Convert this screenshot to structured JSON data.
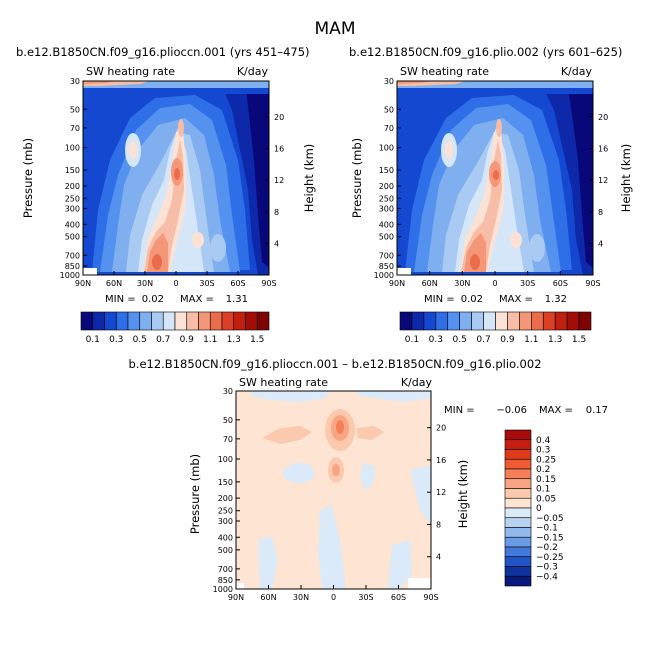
{
  "figure": {
    "season": "MAM"
  },
  "chart_data": [
    {
      "type": "heatmap",
      "title": "b.e12.B1850CN.f09_g16.plioccn.001 (yrs 451–475)",
      "field_label": "SW heating rate",
      "units_label": "K/day",
      "ylabel": "Pressure (mb)",
      "y2label": "Height (km)",
      "x_ticks": [
        "90N",
        "60N",
        "30N",
        "0",
        "30S",
        "60S",
        "90S"
      ],
      "x_values": [
        90,
        60,
        30,
        0,
        -30,
        -60,
        -90
      ],
      "y_ticks": [
        "30",
        "50",
        "70",
        "100",
        "150",
        "200",
        "250",
        "300",
        "400",
        "500",
        "700",
        "850",
        "1000"
      ],
      "y_values": [
        30,
        50,
        70,
        100,
        150,
        200,
        250,
        300,
        400,
        500,
        700,
        850,
        1000
      ],
      "y2_ticks": [
        "20",
        "16",
        "12",
        "8",
        "4"
      ],
      "y2_values": [
        20,
        16,
        12,
        8,
        4
      ],
      "ylim": [
        30,
        1000
      ],
      "min_label": "MIN =",
      "min_value": "0.02",
      "max_label": "MAX =",
      "max_value": "1.31",
      "colorbar": {
        "labels": [
          "0.1",
          "0.3",
          "0.5",
          "0.7",
          "0.9",
          "1.1",
          "1.3",
          "1.5"
        ],
        "levels": [
          0.1,
          0.2,
          0.3,
          0.4,
          0.5,
          0.6,
          0.7,
          0.8,
          0.9,
          1.0,
          1.1,
          1.2,
          1.3,
          1.4,
          1.5
        ],
        "colors": [
          "#08087a",
          "#0d28a8",
          "#1448d0",
          "#2e6fe8",
          "#5591ef",
          "#80afef",
          "#a9caf2",
          "#d5e6f8",
          "#fbe2d4",
          "#f7bda6",
          "#f39778",
          "#ea6d4b",
          "#dc4128",
          "#c2200f",
          "#a30d07",
          "#7e0303"
        ]
      }
    },
    {
      "type": "heatmap",
      "title": "b.e12.B1850CN.f09_g16.plio.002 (yrs 601–625)",
      "field_label": "SW heating rate",
      "units_label": "K/day",
      "ylabel": "Pressure (mb)",
      "y2label": "Height (km)",
      "x_ticks": [
        "90N",
        "60N",
        "30N",
        "0",
        "30S",
        "60S",
        "90S"
      ],
      "x_values": [
        90,
        60,
        30,
        0,
        -30,
        -60,
        -90
      ],
      "y_ticks": [
        "30",
        "50",
        "70",
        "100",
        "150",
        "200",
        "250",
        "300",
        "400",
        "500",
        "700",
        "850",
        "1000"
      ],
      "y_values": [
        30,
        50,
        70,
        100,
        150,
        200,
        250,
        300,
        400,
        500,
        700,
        850,
        1000
      ],
      "y2_ticks": [
        "20",
        "16",
        "12",
        "8",
        "4"
      ],
      "y2_values": [
        20,
        16,
        12,
        8,
        4
      ],
      "ylim": [
        30,
        1000
      ],
      "min_label": "MIN =",
      "min_value": "0.02",
      "max_label": "MAX =",
      "max_value": "1.32",
      "colorbar": {
        "labels": [
          "0.1",
          "0.3",
          "0.5",
          "0.7",
          "0.9",
          "1.1",
          "1.3",
          "1.5"
        ],
        "levels": [
          0.1,
          0.2,
          0.3,
          0.4,
          0.5,
          0.6,
          0.7,
          0.8,
          0.9,
          1.0,
          1.1,
          1.2,
          1.3,
          1.4,
          1.5
        ],
        "colors": [
          "#08087a",
          "#0d28a8",
          "#1448d0",
          "#2e6fe8",
          "#5591ef",
          "#80afef",
          "#a9caf2",
          "#d5e6f8",
          "#fbe2d4",
          "#f7bda6",
          "#f39778",
          "#ea6d4b",
          "#dc4128",
          "#c2200f",
          "#a30d07",
          "#7e0303"
        ]
      }
    },
    {
      "type": "heatmap",
      "title": "b.e12.B1850CN.f09_g16.plioccn.001 – b.e12.B1850CN.f09_g16.plio.002",
      "field_label": "SW heating rate",
      "units_label": "K/day",
      "ylabel": "Pressure (mb)",
      "y2label": "Height (km)",
      "x_ticks": [
        "90N",
        "60N",
        "30N",
        "0",
        "30S",
        "60S",
        "90S"
      ],
      "x_values": [
        90,
        60,
        30,
        0,
        -30,
        -60,
        -90
      ],
      "y_ticks": [
        "30",
        "50",
        "70",
        "100",
        "150",
        "200",
        "250",
        "300",
        "400",
        "500",
        "700",
        "850",
        "1000"
      ],
      "y_values": [
        30,
        50,
        70,
        100,
        150,
        200,
        250,
        300,
        400,
        500,
        700,
        850,
        1000
      ],
      "y2_ticks": [
        "20",
        "16",
        "12",
        "8",
        "4"
      ],
      "y2_values": [
        20,
        16,
        12,
        8,
        4
      ],
      "ylim": [
        30,
        1000
      ],
      "min_label": "MIN =",
      "min_value": "−0.06",
      "max_label": "MAX =",
      "max_value": "0.17",
      "colorbar": {
        "labels": [
          "0.4",
          "0.3",
          "0.25",
          "0.2",
          "0.15",
          "0.1",
          "0.05",
          "0",
          "−0.05",
          "−0.1",
          "−0.15",
          "−0.2",
          "−0.25",
          "−0.3",
          "−0.4"
        ],
        "levels": [
          0.4,
          0.3,
          0.25,
          0.2,
          0.15,
          0.1,
          0.05,
          0,
          -0.05,
          -0.1,
          -0.15,
          -0.2,
          -0.25,
          -0.3,
          -0.4
        ],
        "colors": [
          "#a70a0a",
          "#c71d10",
          "#e03a1c",
          "#ef5b34",
          "#f47f58",
          "#f8a583",
          "#fbc9ad",
          "#fde4d3",
          "#dbeaf8",
          "#b8d3f2",
          "#93b9ec",
          "#6c9be6",
          "#4479dc",
          "#2155c6",
          "#0e32a0",
          "#081b7c"
        ]
      }
    }
  ]
}
